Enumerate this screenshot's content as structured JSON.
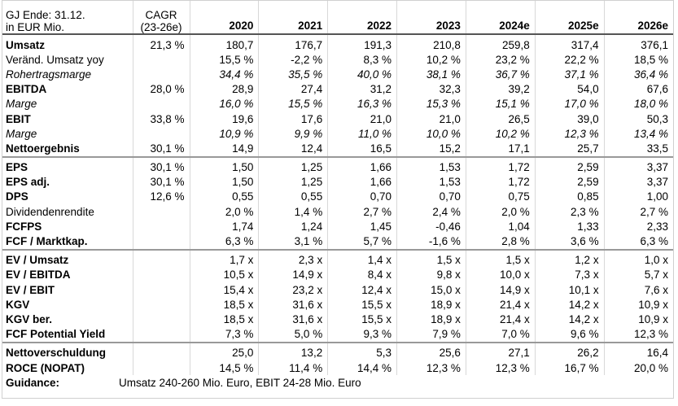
{
  "header": {
    "label": [
      "GJ Ende: 31.12.",
      "in EUR Mio."
    ],
    "cagr": [
      "CAGR",
      "(23-26e)"
    ],
    "years": [
      "2020",
      "2021",
      "2022",
      "2023",
      "2024e",
      "2025e",
      "2026e"
    ]
  },
  "sections": [
    {
      "rows": [
        {
          "label": "Umsatz",
          "cagr": "21,3 %",
          "values": [
            "180,7",
            "176,7",
            "191,3",
            "210,8",
            "259,8",
            "317,4",
            "376,1"
          ]
        },
        {
          "label": "Veränd. Umsatz yoy",
          "values": [
            "15,5 %",
            "-2,2 %",
            "8,3 %",
            "10,2 %",
            "23,2 %",
            "22,2 %",
            "18,5 %"
          ]
        },
        {
          "label": "Rohertragsmarge",
          "values": [
            "34,4 %",
            "35,5 %",
            "40,0 %",
            "38,1 %",
            "36,7 %",
            "37,1 %",
            "36,4 %"
          ]
        },
        {
          "label": "EBITDA",
          "cagr": "28,0 %",
          "values": [
            "28,9",
            "27,4",
            "31,2",
            "32,3",
            "39,2",
            "54,0",
            "67,6"
          ]
        },
        {
          "label": "Marge",
          "values": [
            "16,0 %",
            "15,5 %",
            "16,3 %",
            "15,3 %",
            "15,1 %",
            "17,0 %",
            "18,0 %"
          ]
        },
        {
          "label": "EBIT",
          "cagr": "33,8 %",
          "values": [
            "19,6",
            "17,6",
            "21,0",
            "21,0",
            "26,5",
            "39,0",
            "50,3"
          ]
        },
        {
          "label": "Marge",
          "values": [
            "10,9 %",
            "9,9 %",
            "11,0 %",
            "10,0 %",
            "10,2 %",
            "12,3 %",
            "13,4 %"
          ]
        },
        {
          "label": "Nettoergebnis",
          "cagr": "30,1 %",
          "values": [
            "14,9",
            "12,4",
            "16,5",
            "15,2",
            "17,1",
            "25,7",
            "33,5"
          ]
        }
      ]
    },
    {
      "rows": [
        {
          "label": "EPS",
          "cagr": "30,1 %",
          "values": [
            "1,50",
            "1,25",
            "1,66",
            "1,53",
            "1,72",
            "2,59",
            "3,37"
          ]
        },
        {
          "label": "EPS adj.",
          "cagr": "30,1 %",
          "values": [
            "1,50",
            "1,25",
            "1,66",
            "1,53",
            "1,72",
            "2,59",
            "3,37"
          ]
        },
        {
          "label": "DPS",
          "cagr": "12,6 %",
          "values": [
            "0,55",
            "0,55",
            "0,70",
            "0,70",
            "0,75",
            "0,85",
            "1,00"
          ]
        },
        {
          "label": "Dividendenrendite",
          "values": [
            "2,0 %",
            "1,4 %",
            "2,7 %",
            "2,4 %",
            "2,0 %",
            "2,3 %",
            "2,7 %"
          ]
        },
        {
          "label": "FCFPS",
          "values": [
            "1,74",
            "1,24",
            "1,45",
            "-0,46",
            "1,04",
            "1,33",
            "2,33"
          ]
        },
        {
          "label": "FCF / Marktkap.",
          "values": [
            "6,3 %",
            "3,1 %",
            "5,7 %",
            "-1,6 %",
            "2,8 %",
            "3,6 %",
            "6,3 %"
          ]
        }
      ]
    },
    {
      "rows": [
        {
          "label": "EV / Umsatz",
          "values": [
            "1,7 x",
            "2,3 x",
            "1,4 x",
            "1,5 x",
            "1,5 x",
            "1,2 x",
            "1,0 x"
          ]
        },
        {
          "label": "EV / EBITDA",
          "values": [
            "10,5 x",
            "14,9 x",
            "8,4 x",
            "9,8 x",
            "10,0 x",
            "7,3 x",
            "5,7 x"
          ]
        },
        {
          "label": "EV / EBIT",
          "values": [
            "15,4 x",
            "23,2 x",
            "12,4 x",
            "15,0 x",
            "14,9 x",
            "10,1 x",
            "7,6 x"
          ]
        },
        {
          "label": "KGV",
          "values": [
            "18,5 x",
            "31,6 x",
            "15,5 x",
            "18,9 x",
            "21,4 x",
            "14,2 x",
            "10,9 x"
          ]
        },
        {
          "label": "KGV ber.",
          "values": [
            "18,5 x",
            "31,6 x",
            "15,5 x",
            "18,9 x",
            "21,4 x",
            "14,2 x",
            "10,9 x"
          ]
        },
        {
          "label": "FCF Potential Yield",
          "values": [
            "7,3 %",
            "5,0 %",
            "9,3 %",
            "7,9 %",
            "7,0 %",
            "9,6 %",
            "12,3 %"
          ]
        }
      ]
    },
    {
      "rows": [
        {
          "label": "Nettoverschuldung",
          "values": [
            "25,0",
            "13,2",
            "5,3",
            "25,6",
            "27,1",
            "26,2",
            "16,4"
          ]
        },
        {
          "label": "ROCE (NOPAT)",
          "values": [
            "14,5 %",
            "11,4 %",
            "14,4 %",
            "12,3 %",
            "12,3 %",
            "16,7 %",
            "20,0 %"
          ]
        }
      ]
    }
  ],
  "guidance": {
    "label": "Guidance:",
    "text": "Umsatz 240-260 Mio. Euro, EBIT 24-28 Mio. Euro"
  }
}
